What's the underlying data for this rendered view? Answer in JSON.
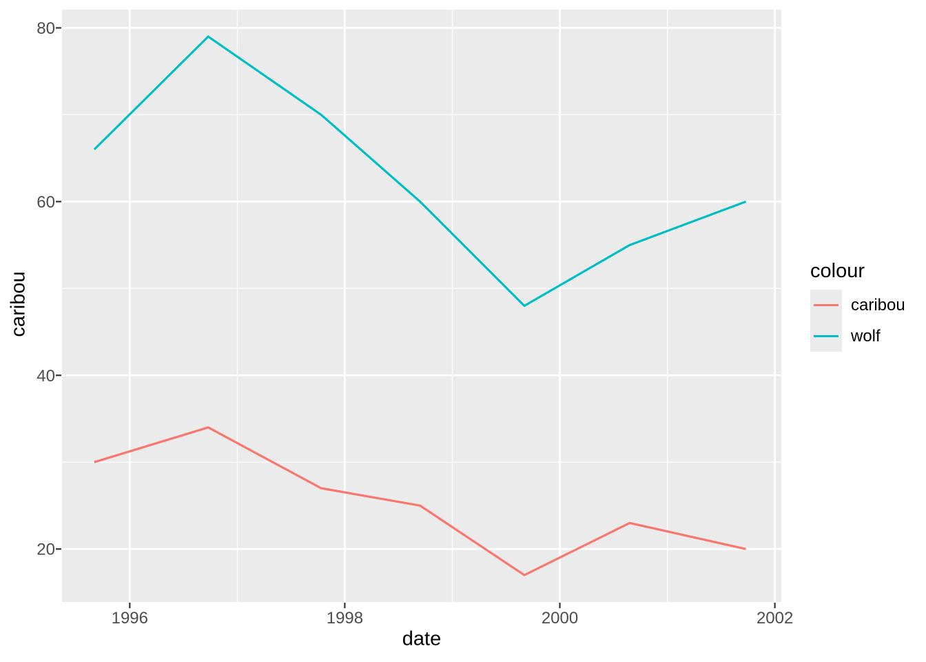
{
  "figure": {
    "background": "#FFFFFF"
  },
  "axes": {
    "x_title": "date",
    "y_title": "caribou"
  },
  "legend": {
    "title": "colour",
    "items": [
      {
        "label": "caribou",
        "color": "#F8766D"
      },
      {
        "label": "wolf",
        "color": "#00BFC4"
      }
    ]
  },
  "chart_data": {
    "type": "line",
    "title": "",
    "xlabel": "date",
    "ylabel": "caribou",
    "x": [
      1995.67,
      1996.73,
      1997.78,
      1998.7,
      1999.67,
      2000.65,
      2001.73
    ],
    "series": [
      {
        "name": "caribou",
        "color": "#F8766D",
        "values": [
          30,
          34,
          27,
          25,
          17,
          23,
          20
        ]
      },
      {
        "name": "wolf",
        "color": "#00BFC4",
        "values": [
          66,
          79,
          70,
          60,
          48,
          55,
          60
        ]
      }
    ],
    "xlim": [
      1995.37,
      2002.06
    ],
    "ylim": [
      13.9,
      82.1
    ],
    "x_ticks": [
      1996,
      1998,
      2000,
      2002
    ],
    "x_tick_labels": [
      "1996",
      "1998",
      "2000",
      "2002"
    ],
    "y_ticks": [
      20,
      40,
      60,
      80
    ],
    "y_tick_labels": [
      "20",
      "40",
      "60",
      "80"
    ],
    "x_minor": [
      1997,
      1999,
      2001
    ],
    "y_minor": [
      30,
      50,
      70
    ],
    "grid": true,
    "legend_position": "right",
    "theme": {
      "panel_bg": "#EBEBEB",
      "grid_color": "#FFFFFF",
      "tick_color": "#333333",
      "tick_label_color": "#4D4D4D",
      "title_color": "#000000",
      "legend_key_bg": "#EBEBEB"
    }
  }
}
